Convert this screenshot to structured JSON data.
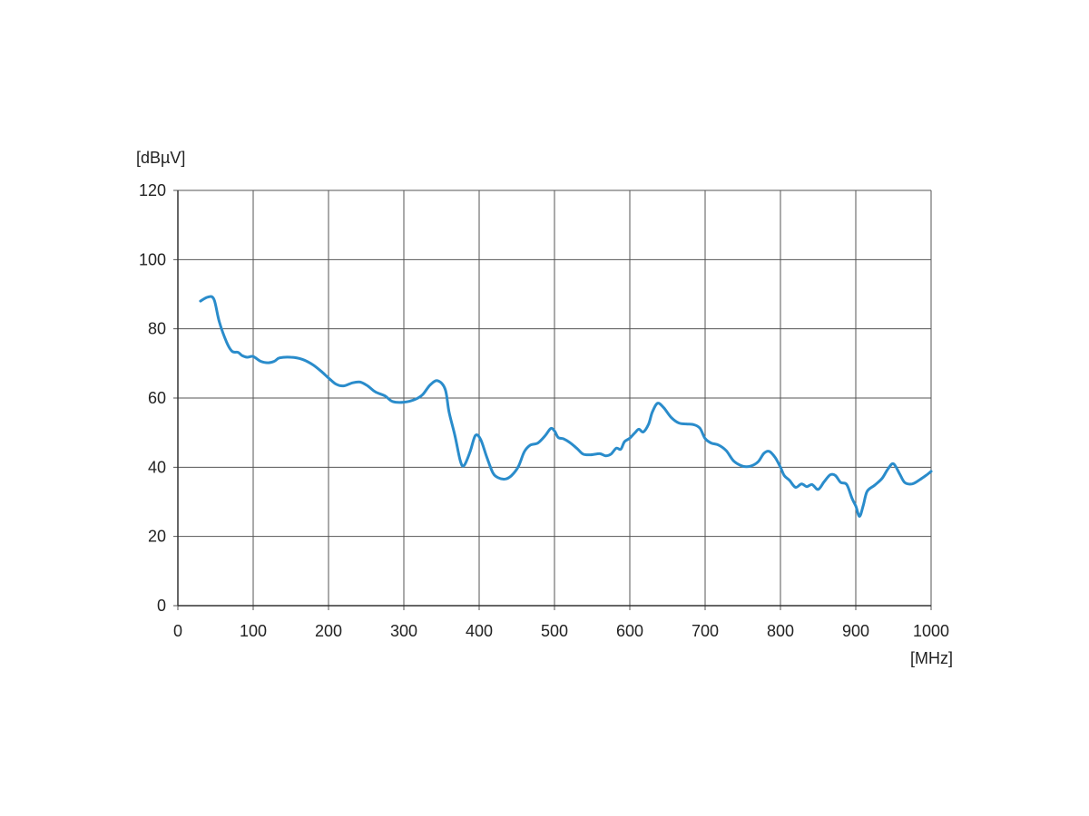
{
  "chart_data": {
    "type": "line",
    "xlabel": "[MHz]",
    "ylabel": "[dBµV]",
    "xlim": [
      0,
      1000
    ],
    "ylim": [
      0,
      120
    ],
    "x_ticks": [
      0,
      100,
      200,
      300,
      400,
      500,
      600,
      700,
      800,
      900,
      1000
    ],
    "y_ticks": [
      0,
      20,
      40,
      60,
      80,
      100,
      120
    ],
    "x_tick_labels": [
      "0",
      "100",
      "200",
      "300",
      "400",
      "500",
      "600",
      "700",
      "800",
      "900",
      "1000"
    ],
    "y_tick_labels": [
      "0",
      "20",
      "40",
      "60",
      "80",
      "100",
      "120"
    ],
    "grid": true,
    "line_color": "#2a8ccb",
    "grid_color": "#555555",
    "series": [
      {
        "points": [
          [
            30,
            88
          ],
          [
            40,
            89.2
          ],
          [
            48,
            88.5
          ],
          [
            55,
            82
          ],
          [
            65,
            76
          ],
          [
            72,
            73.5
          ],
          [
            80,
            73.2
          ],
          [
            85,
            72.3
          ],
          [
            92,
            71.8
          ],
          [
            100,
            72
          ],
          [
            110,
            70.6
          ],
          [
            120,
            70.2
          ],
          [
            128,
            70.6
          ],
          [
            135,
            71.6
          ],
          [
            150,
            71.8
          ],
          [
            165,
            71.2
          ],
          [
            180,
            69.5
          ],
          [
            192,
            67.4
          ],
          [
            200,
            65.8
          ],
          [
            210,
            64.0
          ],
          [
            220,
            63.5
          ],
          [
            232,
            64.4
          ],
          [
            242,
            64.6
          ],
          [
            252,
            63.5
          ],
          [
            262,
            61.8
          ],
          [
            275,
            60.6
          ],
          [
            285,
            59.0
          ],
          [
            300,
            58.8
          ],
          [
            315,
            59.6
          ],
          [
            325,
            61.0
          ],
          [
            335,
            63.8
          ],
          [
            345,
            65.0
          ],
          [
            355,
            62.5
          ],
          [
            360,
            56.0
          ],
          [
            368,
            49.0
          ],
          [
            375,
            41.8
          ],
          [
            380,
            40.5
          ],
          [
            388,
            44.5
          ],
          [
            395,
            49.2
          ],
          [
            402,
            48.0
          ],
          [
            410,
            43.0
          ],
          [
            418,
            38.5
          ],
          [
            425,
            37.0
          ],
          [
            435,
            36.6
          ],
          [
            443,
            37.6
          ],
          [
            452,
            40.2
          ],
          [
            460,
            44.5
          ],
          [
            468,
            46.4
          ],
          [
            478,
            47.0
          ],
          [
            488,
            49.2
          ],
          [
            495,
            51.2
          ],
          [
            500,
            50.5
          ],
          [
            505,
            48.6
          ],
          [
            512,
            48.2
          ],
          [
            520,
            47.2
          ],
          [
            530,
            45.4
          ],
          [
            538,
            43.8
          ],
          [
            548,
            43.6
          ],
          [
            560,
            43.9
          ],
          [
            568,
            43.3
          ],
          [
            575,
            43.8
          ],
          [
            582,
            45.5
          ],
          [
            588,
            45.2
          ],
          [
            593,
            47.4
          ],
          [
            600,
            48.4
          ],
          [
            607,
            50.0
          ],
          [
            612,
            51.0
          ],
          [
            618,
            50.2
          ],
          [
            625,
            52.5
          ],
          [
            630,
            56.0
          ],
          [
            637,
            58.5
          ],
          [
            645,
            57.2
          ],
          [
            655,
            54.4
          ],
          [
            665,
            52.8
          ],
          [
            675,
            52.5
          ],
          [
            685,
            52.3
          ],
          [
            693,
            51.3
          ],
          [
            700,
            48.3
          ],
          [
            708,
            47.0
          ],
          [
            718,
            46.4
          ],
          [
            728,
            44.8
          ],
          [
            738,
            41.8
          ],
          [
            750,
            40.3
          ],
          [
            760,
            40.3
          ],
          [
            770,
            41.5
          ],
          [
            778,
            44.0
          ],
          [
            785,
            44.6
          ],
          [
            793,
            42.8
          ],
          [
            800,
            40.0
          ],
          [
            805,
            37.6
          ],
          [
            812,
            36.2
          ],
          [
            820,
            34.2
          ],
          [
            828,
            35.2
          ],
          [
            835,
            34.4
          ],
          [
            842,
            35.0
          ],
          [
            850,
            33.6
          ],
          [
            858,
            35.8
          ],
          [
            866,
            37.8
          ],
          [
            873,
            37.6
          ],
          [
            880,
            35.6
          ],
          [
            888,
            35.0
          ],
          [
            895,
            31.0
          ],
          [
            900,
            28.8
          ],
          [
            905,
            25.8
          ],
          [
            910,
            29.0
          ],
          [
            915,
            33.0
          ],
          [
            925,
            34.8
          ],
          [
            935,
            36.8
          ],
          [
            943,
            39.6
          ],
          [
            950,
            41.0
          ],
          [
            958,
            38.2
          ],
          [
            965,
            35.6
          ],
          [
            975,
            35.2
          ],
          [
            985,
            36.4
          ],
          [
            993,
            37.6
          ],
          [
            1000,
            38.8
          ]
        ]
      }
    ]
  }
}
